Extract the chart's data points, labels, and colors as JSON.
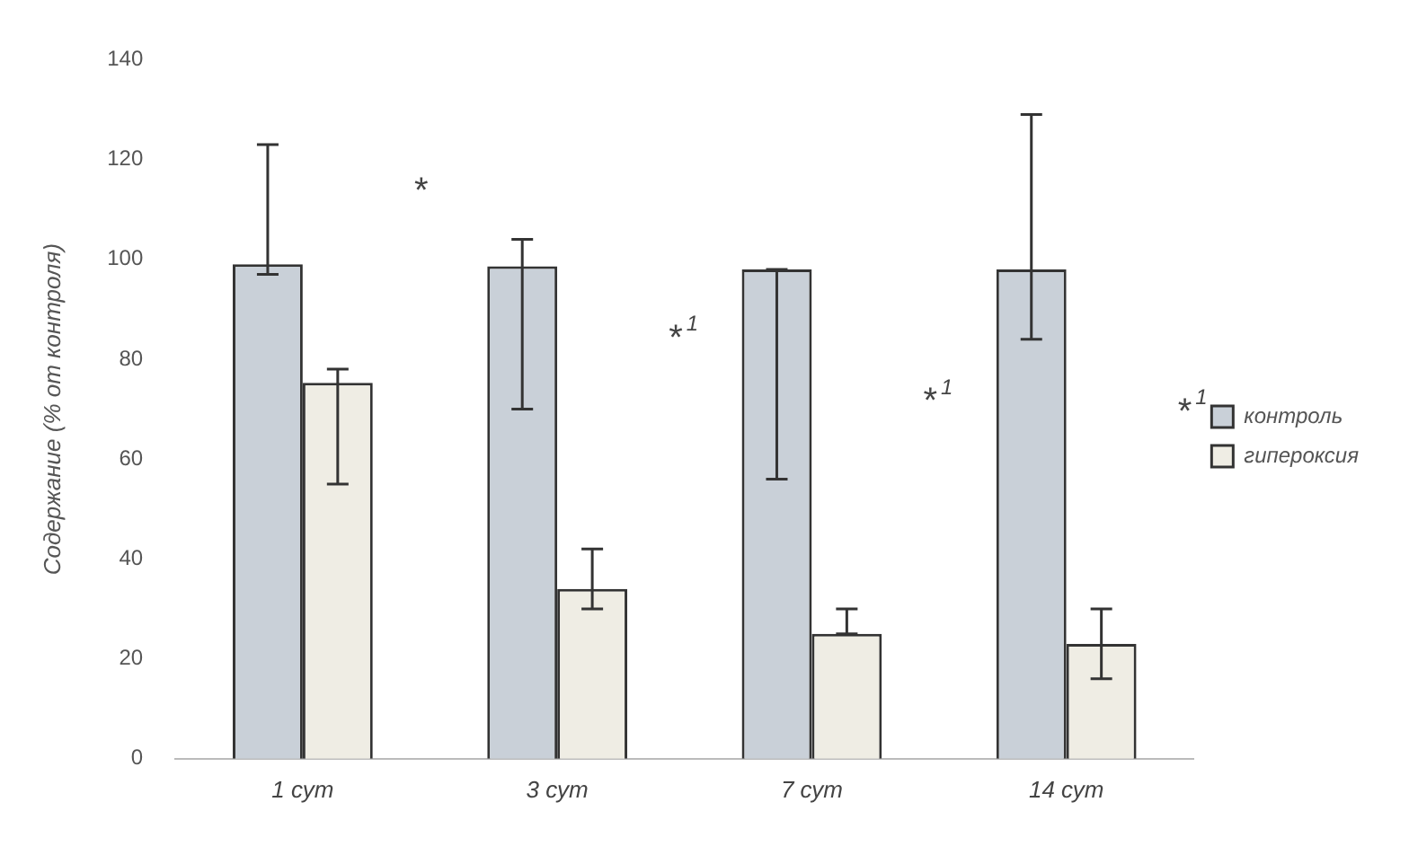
{
  "chart_data": {
    "type": "bar",
    "ylabel": "Содержание (% от контроля)",
    "categories": [
      "1 сут",
      "3 сут",
      "7 сут",
      "14 сут"
    ],
    "series": [
      {
        "name": "контроль",
        "color": "#c9d0d8",
        "values": [
          99,
          98.6,
          98,
          98
        ],
        "errors": [
          [
            97,
            123
          ],
          [
            70,
            104
          ],
          [
            56,
            98
          ],
          [
            84,
            129
          ]
        ]
      },
      {
        "name": "гипероксия",
        "color": "#efede4",
        "values": [
          75.3,
          34,
          25,
          23
        ],
        "errors": [
          [
            55,
            78
          ],
          [
            30,
            42
          ],
          [
            25,
            30
          ],
          [
            16,
            30
          ]
        ]
      }
    ],
    "ylim": [
      0,
      140
    ],
    "yticks": [
      0,
      20,
      40,
      60,
      80,
      100,
      120,
      140
    ],
    "grid": false,
    "legend": "right",
    "annotations": [
      "*",
      "*$^{1}$",
      "*$^{1}$",
      "*$^{1}$"
    ]
  }
}
